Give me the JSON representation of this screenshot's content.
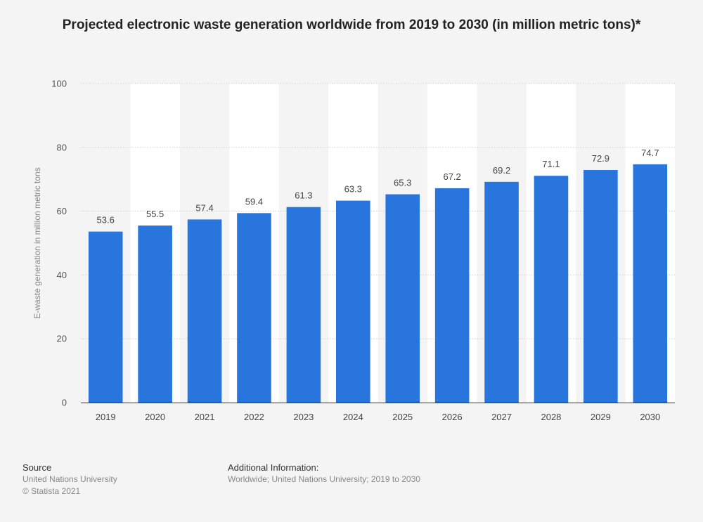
{
  "chart_data": {
    "type": "bar",
    "title": "Projected electronic waste generation worldwide from 2019 to 2030 (in million metric tons)*",
    "xlabel": "",
    "ylabel": "E-waste generation in million metric tons",
    "categories": [
      "2019",
      "2020",
      "2021",
      "2022",
      "2023",
      "2024",
      "2025",
      "2026",
      "2027",
      "2028",
      "2029",
      "2030"
    ],
    "values": [
      53.6,
      55.5,
      57.4,
      59.4,
      61.3,
      63.3,
      65.3,
      67.2,
      69.2,
      71.1,
      72.9,
      74.7
    ],
    "ylim": [
      0,
      100
    ],
    "yticks": [
      0,
      20,
      40,
      60,
      80,
      100
    ],
    "grid": true,
    "data_labels": true,
    "bar_color": "#2876dd"
  },
  "footer": {
    "source_heading": "Source",
    "source_lines": [
      "United Nations University",
      "© Statista 2021"
    ],
    "info_heading": "Additional Information:",
    "info_lines": [
      "Worldwide; United Nations University; 2019 to 2030"
    ]
  }
}
